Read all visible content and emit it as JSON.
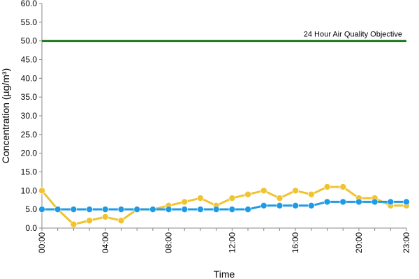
{
  "chart_data": {
    "type": "line",
    "title": "",
    "xlabel": "Time",
    "ylabel": "Concentration (µg/m³)",
    "ylim": [
      0,
      60
    ],
    "yticks": [
      "0.0",
      "5.0",
      "10.0",
      "15.0",
      "20.0",
      "25.0",
      "30.0",
      "35.0",
      "40.0",
      "45.0",
      "50.0",
      "55.0",
      "60.0"
    ],
    "x": [
      "00:00",
      "01:00",
      "02:00",
      "03:00",
      "04:00",
      "05:00",
      "06:00",
      "07:00",
      "08:00",
      "09:00",
      "10:00",
      "11:00",
      "12:00",
      "13:00",
      "14:00",
      "15:00",
      "16:00",
      "17:00",
      "18:00",
      "19:00",
      "20:00",
      "21:00",
      "22:00",
      "23:00"
    ],
    "xtick_labels": [
      "00:00",
      "04:00",
      "08:00",
      "12:00",
      "16:00",
      "20:00",
      "23:00"
    ],
    "grid": false,
    "series": [
      {
        "color": "#f0c330",
        "values": [
          10,
          5,
          1,
          2,
          3,
          2,
          5,
          5,
          6,
          7,
          8,
          6,
          8,
          9,
          10,
          8,
          10,
          9,
          11,
          11,
          8,
          8,
          6,
          6
        ]
      },
      {
        "color": "#1e9be6",
        "values": [
          5,
          5,
          5,
          5,
          5,
          5,
          5,
          5,
          5,
          5,
          5,
          5,
          5,
          5,
          6,
          6,
          6,
          6,
          7,
          7,
          7,
          7,
          7,
          7
        ]
      }
    ],
    "reference_line": {
      "value": 50,
      "label": "24 Hour Air Quality Objective",
      "color": "#1e7a1e"
    }
  }
}
